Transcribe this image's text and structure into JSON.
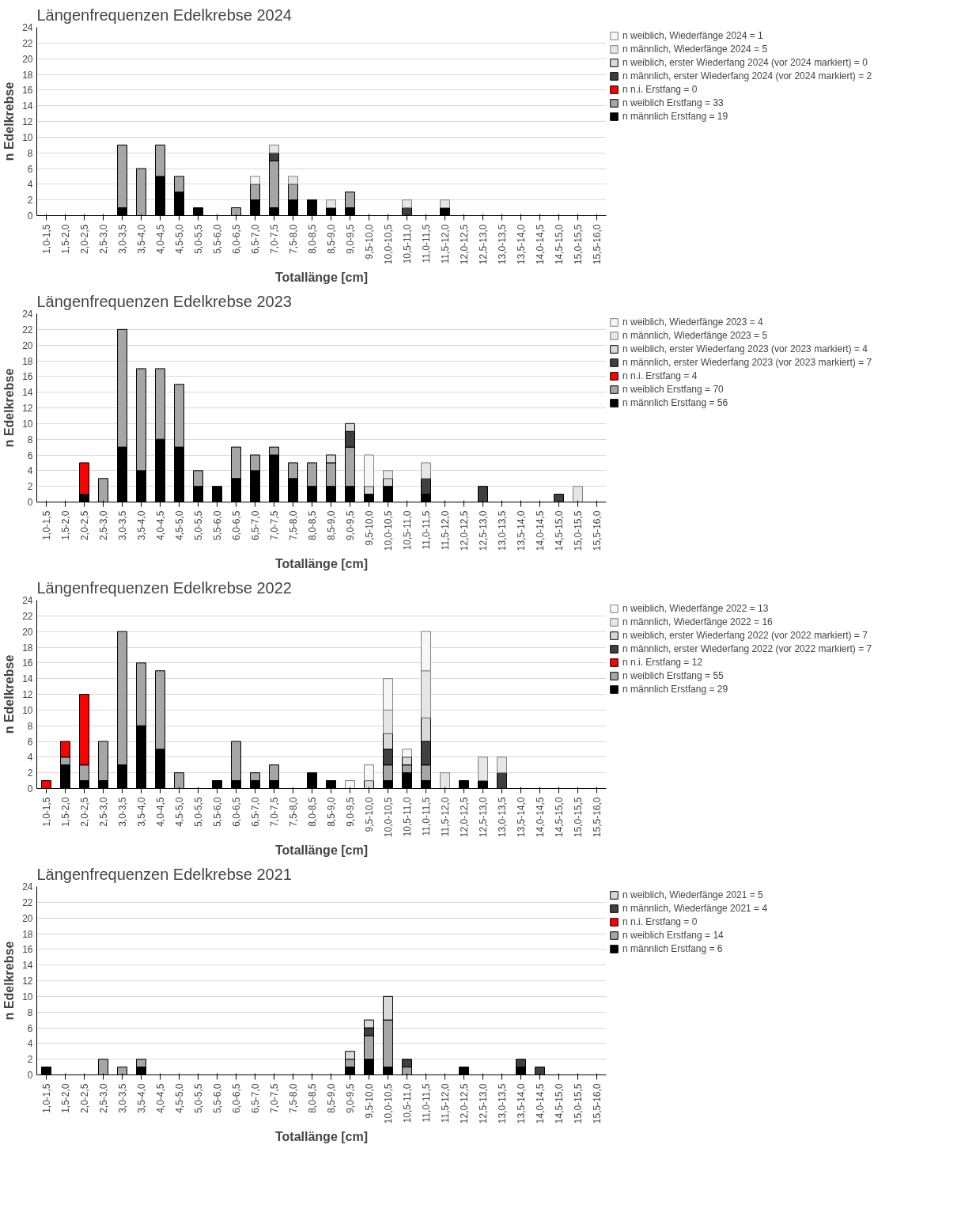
{
  "chart_data": [
    {
      "type": "bar",
      "stacked": true,
      "title": "Längenfrequenzen Edelkrebse 2024",
      "xlabel": "Totallänge [cm]",
      "ylabel": "n Edelkrebse",
      "ylim": [
        0,
        24
      ],
      "yticks": [
        0,
        2,
        4,
        6,
        8,
        10,
        12,
        14,
        16,
        18,
        20,
        22,
        24
      ],
      "grid": "y",
      "legend": "top right",
      "categories": [
        "1,0-1,5",
        "1,5-2,0",
        "2,0-2,5",
        "2,5-3,0",
        "3,0-3,5",
        "3,5-4,0",
        "4,0-4,5",
        "4,5-5,0",
        "5,0-5,5",
        "5,5-6,0",
        "6,0-6,5",
        "6,5-7,0",
        "7,0-7,5",
        "7,5-8,0",
        "8,0-8,5",
        "8,5-9,0",
        "9,0-9,5",
        "9,5-10,0",
        "10,0-10,5",
        "10,5-11,0",
        "11,0-11,5",
        "11,5-12,0",
        "12,0-12,5",
        "12,5-13,0",
        "13,0-13,5",
        "13,5-14,0",
        "14,0-14,5",
        "14,5-15,0",
        "15,0-15,5",
        "15,5-16,0"
      ],
      "series": [
        {
          "name": "n männlich Erstfang = 19",
          "color": "#000000",
          "values": [
            null,
            null,
            null,
            null,
            1,
            null,
            5,
            3,
            1,
            null,
            null,
            2,
            1,
            2,
            2,
            1,
            1,
            null,
            null,
            null,
            null,
            1,
            null,
            null,
            null,
            null,
            null,
            null,
            null,
            null
          ]
        },
        {
          "name": "n weiblich Erstfang = 33",
          "color": "#a6a6a6",
          "values": [
            null,
            null,
            null,
            null,
            8,
            6,
            4,
            2,
            null,
            null,
            1,
            2,
            6,
            2,
            null,
            null,
            2,
            null,
            null,
            null,
            null,
            null,
            null,
            null,
            null,
            null,
            null,
            null,
            null,
            null
          ]
        },
        {
          "name": "n n.i. Erstfang = 0",
          "color": "#ff0000",
          "values": [
            null,
            null,
            null,
            null,
            null,
            null,
            null,
            null,
            null,
            null,
            null,
            null,
            null,
            null,
            null,
            null,
            null,
            null,
            null,
            null,
            null,
            null,
            null,
            null,
            null,
            null,
            null,
            null,
            null,
            null
          ]
        },
        {
          "name": "n männlich, erster Wiederfang 2024 (vor 2024 markiert) = 2",
          "color": "#404040",
          "values": [
            null,
            null,
            null,
            null,
            null,
            null,
            null,
            null,
            null,
            null,
            null,
            null,
            1,
            null,
            null,
            null,
            null,
            null,
            null,
            1,
            null,
            null,
            null,
            null,
            null,
            null,
            null,
            null,
            null,
            null
          ]
        },
        {
          "name": "n weiblich, erster Wiederfang 2024 (vor 2024 markiert) = 0",
          "color": "#d9d9d9",
          "values": [
            null,
            null,
            null,
            null,
            null,
            null,
            null,
            null,
            null,
            null,
            null,
            null,
            null,
            null,
            null,
            null,
            null,
            null,
            null,
            null,
            null,
            null,
            null,
            null,
            null,
            null,
            null,
            null,
            null,
            null
          ]
        },
        {
          "name": "n männlich, Wiederfänge 2024 = 5",
          "color": "#e6e6e6",
          "values": [
            null,
            null,
            null,
            null,
            null,
            null,
            null,
            null,
            null,
            null,
            null,
            null,
            1,
            1,
            null,
            1,
            null,
            null,
            null,
            1,
            null,
            1,
            null,
            null,
            null,
            null,
            null,
            null,
            null,
            null
          ]
        },
        {
          "name": "n weiblich, Wiederfänge 2024 = 1",
          "color": "#f7f7f7",
          "values": [
            null,
            null,
            null,
            null,
            null,
            null,
            null,
            null,
            null,
            null,
            null,
            1,
            null,
            null,
            null,
            null,
            null,
            null,
            null,
            null,
            null,
            null,
            null,
            null,
            null,
            null,
            null,
            null,
            null,
            null
          ]
        }
      ]
    },
    {
      "type": "bar",
      "stacked": true,
      "title": "Längenfrequenzen Edelkrebse 2023",
      "xlabel": "Totallänge [cm]",
      "ylabel": "n Edelkrebse",
      "ylim": [
        0,
        24
      ],
      "yticks": [
        0,
        2,
        4,
        6,
        8,
        10,
        12,
        14,
        16,
        18,
        20,
        22,
        24
      ],
      "grid": "y",
      "legend": "top right",
      "categories": [
        "1,0-1,5",
        "1,5-2,0",
        "2,0-2,5",
        "2,5-3,0",
        "3,0-3,5",
        "3,5-4,0",
        "4,0-4,5",
        "4,5-5,0",
        "5,0-5,5",
        "5,5-6,0",
        "6,0-6,5",
        "6,5-7,0",
        "7,0-7,5",
        "7,5-8,0",
        "8,0-8,5",
        "8,5-9,0",
        "9,0-9,5",
        "9,5-10,0",
        "10,0-10,5",
        "10,5-11,0",
        "11,0-11,5",
        "11,5-12,0",
        "12,0-12,5",
        "12,5-13,0",
        "13,0-13,5",
        "13,5-14,0",
        "14,0-14,5",
        "14,5-15,0",
        "15,0-15,5",
        "15,5-16,0"
      ],
      "series": [
        {
          "name": "n männlich Erstfang = 56",
          "color": "#000000",
          "values": [
            null,
            null,
            1,
            null,
            7,
            4,
            8,
            7,
            2,
            2,
            3,
            4,
            6,
            3,
            2,
            2,
            2,
            1,
            2,
            null,
            1,
            null,
            null,
            null,
            null,
            null,
            null,
            null,
            null,
            null
          ]
        },
        {
          "name": "n weiblich Erstfang = 70",
          "color": "#a6a6a6",
          "values": [
            null,
            null,
            null,
            3,
            15,
            13,
            9,
            8,
            2,
            null,
            4,
            2,
            1,
            2,
            3,
            3,
            5,
            null,
            null,
            null,
            null,
            null,
            null,
            null,
            null,
            null,
            null,
            null,
            null,
            null
          ]
        },
        {
          "name": "n n.i. Erstfang = 4",
          "color": "#ff0000",
          "values": [
            null,
            null,
            4,
            null,
            null,
            null,
            null,
            null,
            null,
            null,
            null,
            null,
            null,
            null,
            null,
            null,
            null,
            null,
            null,
            null,
            null,
            null,
            null,
            null,
            null,
            null,
            null,
            null,
            null,
            null
          ]
        },
        {
          "name": "n männlich, erster Wiederfang 2023 (vor 2023 markiert) = 7",
          "color": "#404040",
          "values": [
            null,
            null,
            null,
            null,
            null,
            null,
            null,
            null,
            null,
            null,
            null,
            null,
            null,
            null,
            null,
            null,
            2,
            null,
            null,
            null,
            2,
            null,
            null,
            2,
            null,
            null,
            null,
            1,
            null,
            null
          ]
        },
        {
          "name": "n weiblich, erster Wiederfang 2023 (vor 2023 markiert) = 4",
          "color": "#d9d9d9",
          "values": [
            null,
            null,
            null,
            null,
            null,
            null,
            null,
            null,
            null,
            null,
            null,
            null,
            null,
            null,
            null,
            1,
            1,
            1,
            1,
            null,
            null,
            null,
            null,
            null,
            null,
            null,
            null,
            null,
            null,
            null
          ]
        },
        {
          "name": "n männlich, Wiederfänge 2023 = 5",
          "color": "#e6e6e6",
          "values": [
            null,
            null,
            null,
            null,
            null,
            null,
            null,
            null,
            null,
            null,
            null,
            null,
            null,
            null,
            null,
            null,
            null,
            null,
            1,
            null,
            2,
            null,
            null,
            null,
            null,
            null,
            null,
            null,
            2,
            null
          ]
        },
        {
          "name": "n weiblich, Wiederfänge 2023 = 4",
          "color": "#f7f7f7",
          "values": [
            null,
            null,
            null,
            null,
            null,
            null,
            null,
            null,
            null,
            null,
            null,
            null,
            null,
            null,
            null,
            null,
            null,
            4,
            null,
            null,
            null,
            null,
            null,
            null,
            null,
            null,
            null,
            null,
            null,
            null
          ]
        }
      ]
    },
    {
      "type": "bar",
      "stacked": true,
      "title": "Längenfrequenzen Edelkrebse 2022",
      "xlabel": "Totallänge [cm]",
      "ylabel": "n Edelkrebse",
      "ylim": [
        0,
        24
      ],
      "yticks": [
        0,
        2,
        4,
        6,
        8,
        10,
        12,
        14,
        16,
        18,
        20,
        22,
        24
      ],
      "grid": "y",
      "legend": "top right",
      "categories": [
        "1,0-1,5",
        "1,5-2,0",
        "2,0-2,5",
        "2,5-3,0",
        "3,0-3,5",
        "3,5-4,0",
        "4,0-4,5",
        "4,5-5,0",
        "5,0-5,5",
        "5,5-6,0",
        "6,0-6,5",
        "6,5-7,0",
        "7,0-7,5",
        "7,5-8,0",
        "8,0-8,5",
        "8,5-9,0",
        "9,0-9,5",
        "9,5-10,0",
        "10,0-10,5",
        "10,5-11,0",
        "11,0-11,5",
        "11,5-12,0",
        "12,0-12,5",
        "12,5-13,0",
        "13,0-13,5",
        "13,5-14,0",
        "14,0-14,5",
        "14,5-15,0",
        "15,0-15,5",
        "15,5-16,0"
      ],
      "series": [
        {
          "name": "n männlich Erstfang = 29",
          "color": "#000000",
          "values": [
            null,
            3,
            1,
            1,
            3,
            8,
            5,
            null,
            null,
            1,
            1,
            1,
            1,
            null,
            2,
            1,
            null,
            null,
            1,
            2,
            1,
            null,
            1,
            1,
            null,
            null,
            null,
            null,
            null,
            null
          ]
        },
        {
          "name": "n weiblich Erstfang = 55",
          "color": "#a6a6a6",
          "values": [
            null,
            1,
            2,
            5,
            17,
            8,
            10,
            2,
            null,
            null,
            5,
            1,
            2,
            null,
            null,
            null,
            null,
            null,
            2,
            1,
            2,
            null,
            null,
            null,
            null,
            null,
            null,
            null,
            null,
            null
          ]
        },
        {
          "name": "n n.i. Erstfang = 12",
          "color": "#ff0000",
          "values": [
            1,
            2,
            9,
            null,
            null,
            null,
            null,
            null,
            null,
            null,
            null,
            null,
            null,
            null,
            null,
            null,
            null,
            null,
            null,
            null,
            null,
            null,
            null,
            null,
            null,
            null,
            null,
            null,
            null,
            null
          ]
        },
        {
          "name": "n männlich, erster Wiederfang 2022 (vor 2022 markiert) = 7",
          "color": "#404040",
          "values": [
            null,
            null,
            null,
            null,
            null,
            null,
            null,
            null,
            null,
            null,
            null,
            null,
            null,
            null,
            null,
            null,
            null,
            null,
            2,
            null,
            3,
            null,
            null,
            null,
            2,
            null,
            null,
            null,
            null,
            null
          ]
        },
        {
          "name": "n weiblich, erster Wiederfang 2022 (vor 2022 markiert) = 7",
          "color": "#d9d9d9",
          "values": [
            null,
            null,
            null,
            null,
            null,
            null,
            null,
            null,
            null,
            null,
            null,
            null,
            null,
            null,
            null,
            null,
            null,
            1,
            2,
            1,
            3,
            null,
            null,
            null,
            null,
            null,
            null,
            null,
            null,
            null
          ]
        },
        {
          "name": "n männlich, Wiederfänge 2022 = 16",
          "color": "#e6e6e6",
          "values": [
            null,
            null,
            null,
            null,
            null,
            null,
            null,
            null,
            null,
            null,
            null,
            null,
            null,
            null,
            null,
            null,
            null,
            null,
            3,
            null,
            6,
            2,
            null,
            3,
            2,
            null,
            null,
            null,
            null,
            null
          ]
        },
        {
          "name": "n weiblich, Wiederfänge 2022 = 13",
          "color": "#f7f7f7",
          "values": [
            null,
            null,
            null,
            null,
            null,
            null,
            null,
            null,
            null,
            null,
            null,
            null,
            null,
            null,
            null,
            null,
            1,
            2,
            4,
            1,
            5,
            null,
            null,
            null,
            null,
            null,
            null,
            null,
            null,
            null
          ]
        }
      ]
    },
    {
      "type": "bar",
      "stacked": true,
      "title": "Längenfrequenzen Edelkrebse 2021",
      "xlabel": "Totallänge [cm]",
      "ylabel": "n Edelkrebse",
      "ylim": [
        0,
        24
      ],
      "yticks": [
        0,
        2,
        4,
        6,
        8,
        10,
        12,
        14,
        16,
        18,
        20,
        22,
        24
      ],
      "grid": "y",
      "legend": "top right",
      "categories": [
        "1,0-1,5",
        "1,5-2,0",
        "2,0-2,5",
        "2,5-3,0",
        "3,0-3,5",
        "3,5-4,0",
        "4,0-4,5",
        "4,5-5,0",
        "5,0-5,5",
        "5,5-6,0",
        "6,0-6,5",
        "6,5-7,0",
        "7,0-7,5",
        "7,5-8,0",
        "8,0-8,5",
        "8,5-9,0",
        "9,0-9,5",
        "9,5-10,0",
        "10,0-10,5",
        "10,5-11,0",
        "11,0-11,5",
        "11,5-12,0",
        "12,0-12,5",
        "12,5-13,0",
        "13,0-13,5",
        "13,5-14,0",
        "14,0-14,5",
        "14,5-15,0",
        "15,0-15,5",
        "15,5-16,0"
      ],
      "series": [
        {
          "name": "n männlich Erstfang = 6",
          "color": "#000000",
          "values": [
            1,
            null,
            null,
            null,
            null,
            1,
            null,
            null,
            null,
            null,
            null,
            null,
            null,
            null,
            null,
            null,
            1,
            2,
            1,
            null,
            null,
            null,
            1,
            null,
            null,
            1,
            null,
            null,
            null,
            null
          ]
        },
        {
          "name": "n weiblich Erstfang = 14",
          "color": "#a6a6a6",
          "values": [
            null,
            null,
            null,
            2,
            1,
            1,
            null,
            null,
            null,
            null,
            null,
            null,
            null,
            null,
            null,
            null,
            1,
            3,
            6,
            1,
            null,
            null,
            null,
            null,
            null,
            null,
            null,
            null,
            null,
            null
          ]
        },
        {
          "name": "n n.i. Erstfang = 0",
          "color": "#ff0000",
          "values": [
            null,
            null,
            null,
            null,
            null,
            null,
            null,
            null,
            null,
            null,
            null,
            null,
            null,
            null,
            null,
            null,
            null,
            null,
            null,
            null,
            null,
            null,
            null,
            null,
            null,
            null,
            null,
            null,
            null,
            null
          ]
        },
        {
          "name": "n männlich, Wiederfänge 2021 = 4",
          "color": "#404040",
          "values": [
            null,
            null,
            null,
            null,
            null,
            null,
            null,
            null,
            null,
            null,
            null,
            null,
            null,
            null,
            null,
            null,
            null,
            1,
            null,
            1,
            null,
            null,
            null,
            null,
            null,
            1,
            1,
            null,
            null,
            null
          ]
        },
        {
          "name": "n weiblich, Wiederfänge 2021 = 5",
          "color": "#d9d9d9",
          "values": [
            null,
            null,
            null,
            null,
            null,
            null,
            null,
            null,
            null,
            null,
            null,
            null,
            null,
            null,
            null,
            null,
            1,
            1,
            3,
            null,
            null,
            null,
            null,
            null,
            null,
            null,
            null,
            null,
            null,
            null
          ]
        }
      ]
    }
  ]
}
